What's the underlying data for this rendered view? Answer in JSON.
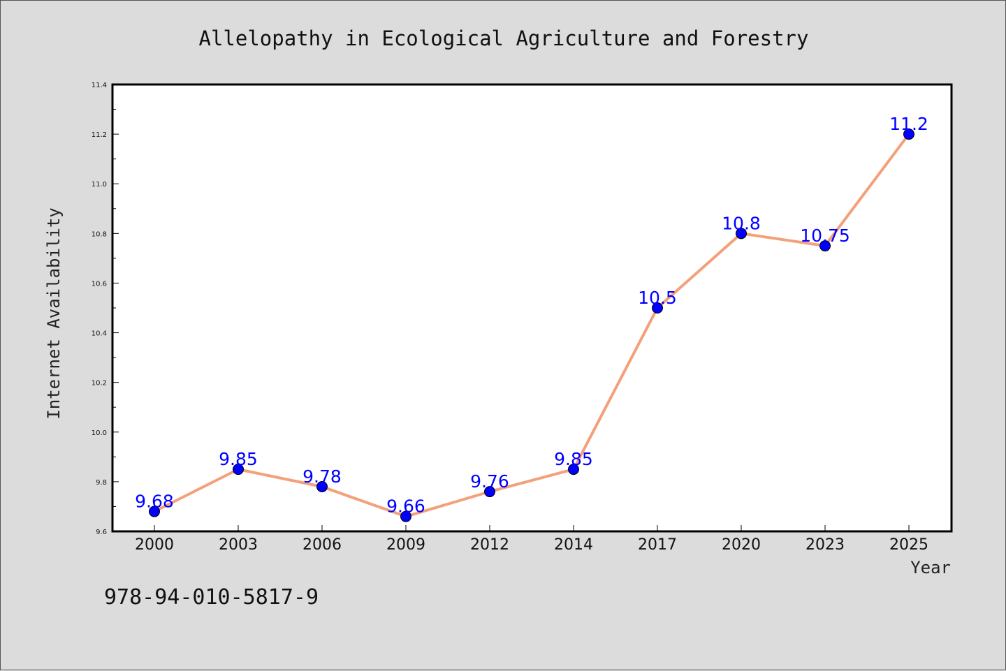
{
  "chart_data": {
    "type": "line",
    "title": "Allelopathy in Ecological Agriculture and Forestry",
    "xlabel": "Year",
    "ylabel": "Internet Availability",
    "categories": [
      "2000",
      "2003",
      "2006",
      "2009",
      "2012",
      "2014",
      "2017",
      "2020",
      "2023",
      "2025"
    ],
    "values": [
      9.68,
      9.85,
      9.78,
      9.66,
      9.76,
      9.85,
      10.5,
      10.8,
      10.75,
      11.2
    ],
    "data_labels": [
      "9.68",
      "9.85",
      "9.78",
      "9.66",
      "9.76",
      "9.85",
      "10.5",
      "10.8",
      "10.75",
      "11.2"
    ],
    "ylim": [
      9.6,
      11.4
    ],
    "yticks": [
      "9.6",
      "9.8",
      "10.0",
      "10.2",
      "10.4",
      "10.6",
      "10.8",
      "11.0",
      "11.2",
      "11.4"
    ],
    "grid": false,
    "line_color": "#f4a07a",
    "marker_color": "#0000ff",
    "label_color": "#0000ff"
  },
  "isbn": "978-94-010-5817-9"
}
